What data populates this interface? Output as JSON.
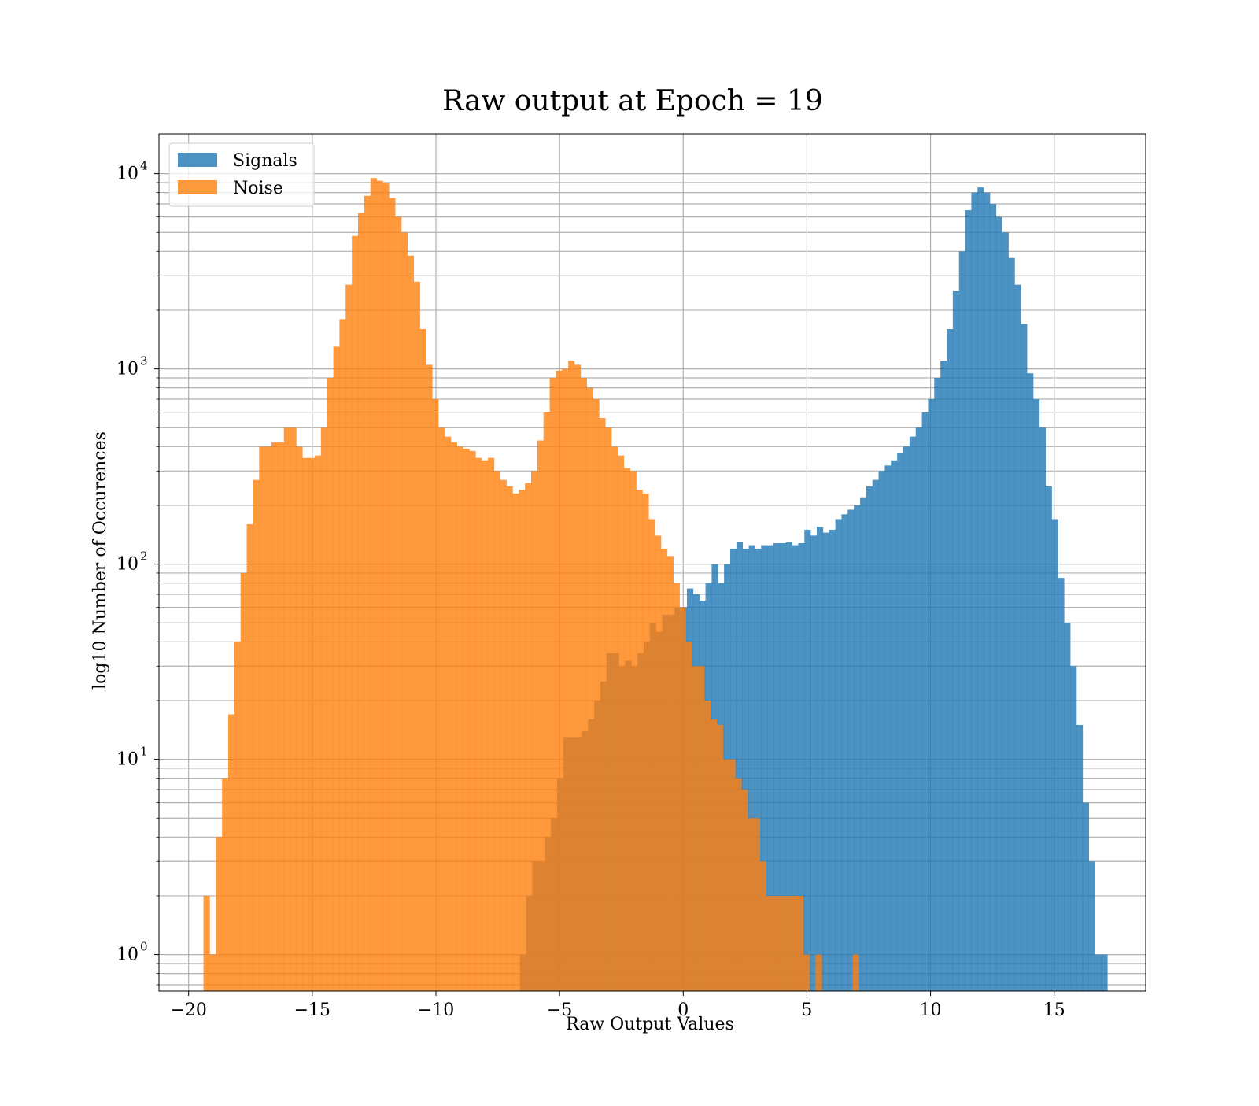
{
  "chart_data": {
    "type": "bar",
    "title": "Raw output at Epoch = 19",
    "xlabel": "Raw Output Values",
    "ylabel": "log10 Number of Occurences",
    "xlim": [
      -21.2,
      18.7
    ],
    "ylim": [
      0.65,
      16000
    ],
    "yscale": "log",
    "grid": true,
    "legend_position": "top-left",
    "x_ticks": [
      -20,
      -15,
      -10,
      -5,
      0,
      5,
      10,
      15
    ],
    "x_tick_labels": [
      "−20",
      "−15",
      "−10",
      "−5",
      "0",
      "5",
      "10",
      "15"
    ],
    "y_ticks": [
      1,
      10,
      100,
      1000,
      10000
    ],
    "y_tick_labels": [
      {
        "base": "10",
        "exp": "0"
      },
      {
        "base": "10",
        "exp": "1"
      },
      {
        "base": "10",
        "exp": "2"
      },
      {
        "base": "10",
        "exp": "3"
      },
      {
        "base": "10",
        "exp": "4"
      }
    ],
    "series": [
      {
        "name": "Signals",
        "color": "#1f77b4",
        "opacity": 0.8,
        "bin_start": -6.6,
        "bin_width": 0.25,
        "counts": [
          1,
          2,
          3,
          3,
          4,
          5,
          8,
          13,
          13,
          13,
          14,
          16,
          20,
          25,
          35,
          35,
          30,
          32,
          30,
          35,
          40,
          50,
          45,
          55,
          55,
          60,
          60,
          75,
          70,
          65,
          80,
          100,
          80,
          100,
          120,
          130,
          120,
          125,
          120,
          125,
          125,
          128,
          128,
          130,
          125,
          128,
          150,
          140,
          155,
          145,
          150,
          170,
          180,
          190,
          200,
          220,
          250,
          270,
          300,
          320,
          340,
          370,
          400,
          450,
          500,
          600,
          700,
          900,
          1100,
          1600,
          2500,
          4000,
          6500,
          8000,
          8500,
          8000,
          7000,
          6000,
          5000,
          3700,
          2700,
          1700,
          950,
          700,
          500,
          250,
          170,
          85,
          50,
          30,
          15,
          6,
          3,
          1,
          1
        ]
      },
      {
        "name": "Noise",
        "color": "#ff7f0e",
        "opacity": 0.8,
        "bin_start": -19.4,
        "bin_width": 0.25,
        "counts": [
          2,
          1,
          4,
          8,
          17,
          40,
          90,
          160,
          270,
          400,
          400,
          420,
          420,
          500,
          500,
          400,
          350,
          350,
          360,
          500,
          900,
          1300,
          1800,
          2700,
          4800,
          6300,
          7700,
          9500,
          9200,
          9000,
          7500,
          6000,
          5000,
          3800,
          2800,
          1600,
          1050,
          700,
          500,
          450,
          420,
          400,
          390,
          380,
          350,
          340,
          350,
          300,
          270,
          250,
          230,
          240,
          260,
          300,
          430,
          600,
          900,
          980,
          1000,
          1100,
          1050,
          900,
          800,
          700,
          560,
          500,
          400,
          360,
          310,
          300,
          240,
          230,
          170,
          140,
          120,
          110,
          80,
          60,
          40,
          30,
          30,
          20,
          16,
          15,
          10,
          10,
          8,
          7,
          5,
          5,
          3,
          2,
          2,
          2,
          2,
          2,
          2,
          1,
          0,
          1,
          0,
          0,
          0,
          0,
          0,
          1
        ]
      }
    ]
  }
}
